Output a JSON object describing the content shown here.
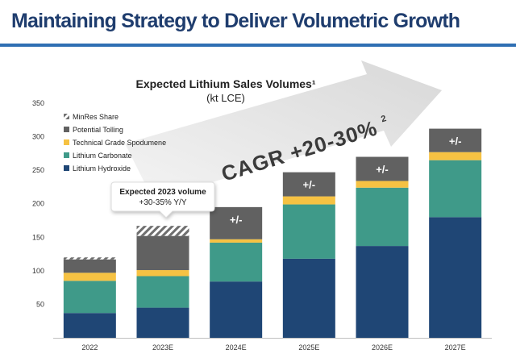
{
  "slide_title": "Maintaining Strategy to Deliver Volumetric Growth",
  "chart_data": {
    "type": "bar",
    "stacked": true,
    "title": "Expected Lithium  Sales Volumes¹",
    "subtitle": "(kt LCE)",
    "ylim": [
      0,
      350
    ],
    "yticks": [
      50,
      100,
      150,
      200,
      250,
      300,
      350
    ],
    "categories": [
      "2022",
      "2023E",
      "2024E",
      "2025E",
      "2026E",
      "2027E"
    ],
    "series": [
      {
        "name": "Lithium Hydroxide",
        "color": "#1f4675",
        "values": [
          37,
          45,
          84,
          118,
          137,
          180
        ]
      },
      {
        "name": "Lithium Carbonate",
        "color": "#3f9a89",
        "values": [
          48,
          47,
          58,
          81,
          87,
          85
        ]
      },
      {
        "name": "Technical Grade Spodumene",
        "color": "#f6c243",
        "values": [
          12,
          9,
          5,
          12,
          10,
          12
        ]
      },
      {
        "name": "Potential Tolling",
        "color": "#616161",
        "values": [
          20,
          51,
          48,
          36,
          36,
          35
        ]
      },
      {
        "name": "MinRes Share",
        "color": "#8a8a8a",
        "pattern": "hatched",
        "values": [
          3,
          15,
          0,
          0,
          0,
          0
        ]
      }
    ],
    "legend_order": [
      "MinRes Share",
      "Potential Tolling",
      "Technical Grade Spodumene",
      "Lithium Carbonate",
      "Lithium Hydroxide"
    ],
    "legend_position": "top-left",
    "bar_annotations": [
      {
        "category": "2024E",
        "text": "+/-"
      },
      {
        "category": "2025E",
        "text": "+/-"
      },
      {
        "category": "2026E",
        "text": "+/-"
      },
      {
        "category": "2027E",
        "text": "+/-"
      }
    ],
    "callout": {
      "category": "2023E",
      "line1": "Expected 2023 volume",
      "line2": "+30-35% Y/Y"
    },
    "arrow_label": "CAGR +20-30%",
    "arrow_label_superscript": "2"
  }
}
